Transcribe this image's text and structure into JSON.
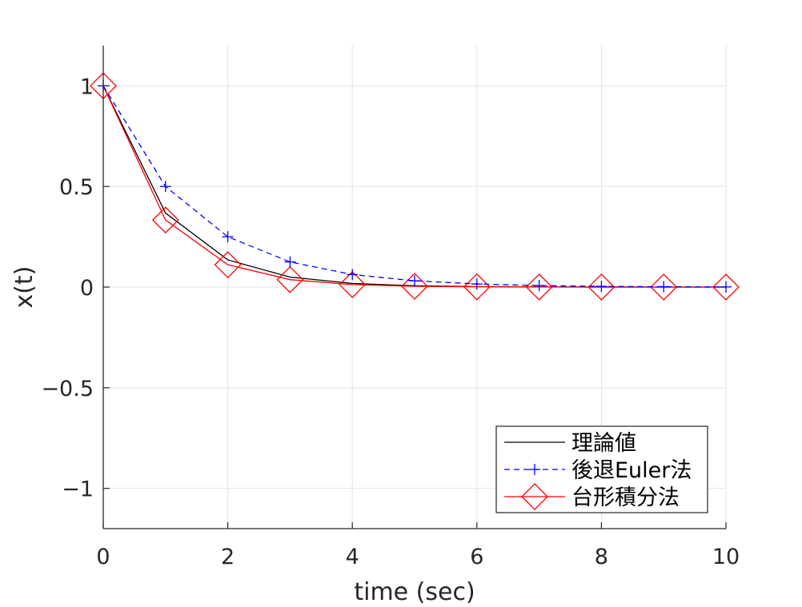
{
  "chart_data": {
    "type": "line",
    "title": "",
    "xlabel": "time (sec)",
    "ylabel": "x(t)",
    "xlim": [
      0,
      10
    ],
    "ylim": [
      -1.2,
      1.2
    ],
    "xticks": [
      0,
      2,
      4,
      6,
      8,
      10
    ],
    "xtick_labels": [
      "0",
      "2",
      "4",
      "6",
      "8",
      "10"
    ],
    "yticks": [
      1,
      0.5,
      0,
      -0.5,
      -1
    ],
    "ytick_labels": [
      "1",
      "0.5",
      "0",
      "−0.5",
      "−1"
    ],
    "grid": true,
    "legend_position": "bottom-right",
    "series": [
      {
        "name": "理論値",
        "color": "#000000",
        "line": "solid",
        "marker": "none",
        "x": [
          0,
          1,
          2,
          3,
          4,
          5,
          6,
          7,
          8,
          9,
          10
        ],
        "y": [
          1,
          0.3679,
          0.1353,
          0.0498,
          0.0183,
          0.0067,
          0.0025,
          0.0009,
          0.0003,
          0.0001,
          0.0
        ]
      },
      {
        "name": "後退Euler法",
        "color": "#0000ff",
        "line": "dashed",
        "marker": "plus",
        "x": [
          0,
          1,
          2,
          3,
          4,
          5,
          6,
          7,
          8,
          9,
          10
        ],
        "y": [
          1,
          0.5,
          0.25,
          0.125,
          0.0625,
          0.0313,
          0.0156,
          0.0078,
          0.0039,
          0.002,
          0.001
        ]
      },
      {
        "name": "台形積分法",
        "color": "#ff0000",
        "line": "solid",
        "marker": "diamond",
        "x": [
          0,
          1,
          2,
          3,
          4,
          5,
          6,
          7,
          8,
          9,
          10
        ],
        "y": [
          1,
          0.3333,
          0.1111,
          0.037,
          0.0123,
          0.0041,
          0.0014,
          0.0005,
          0.0002,
          0.0001,
          0.0
        ]
      }
    ]
  }
}
